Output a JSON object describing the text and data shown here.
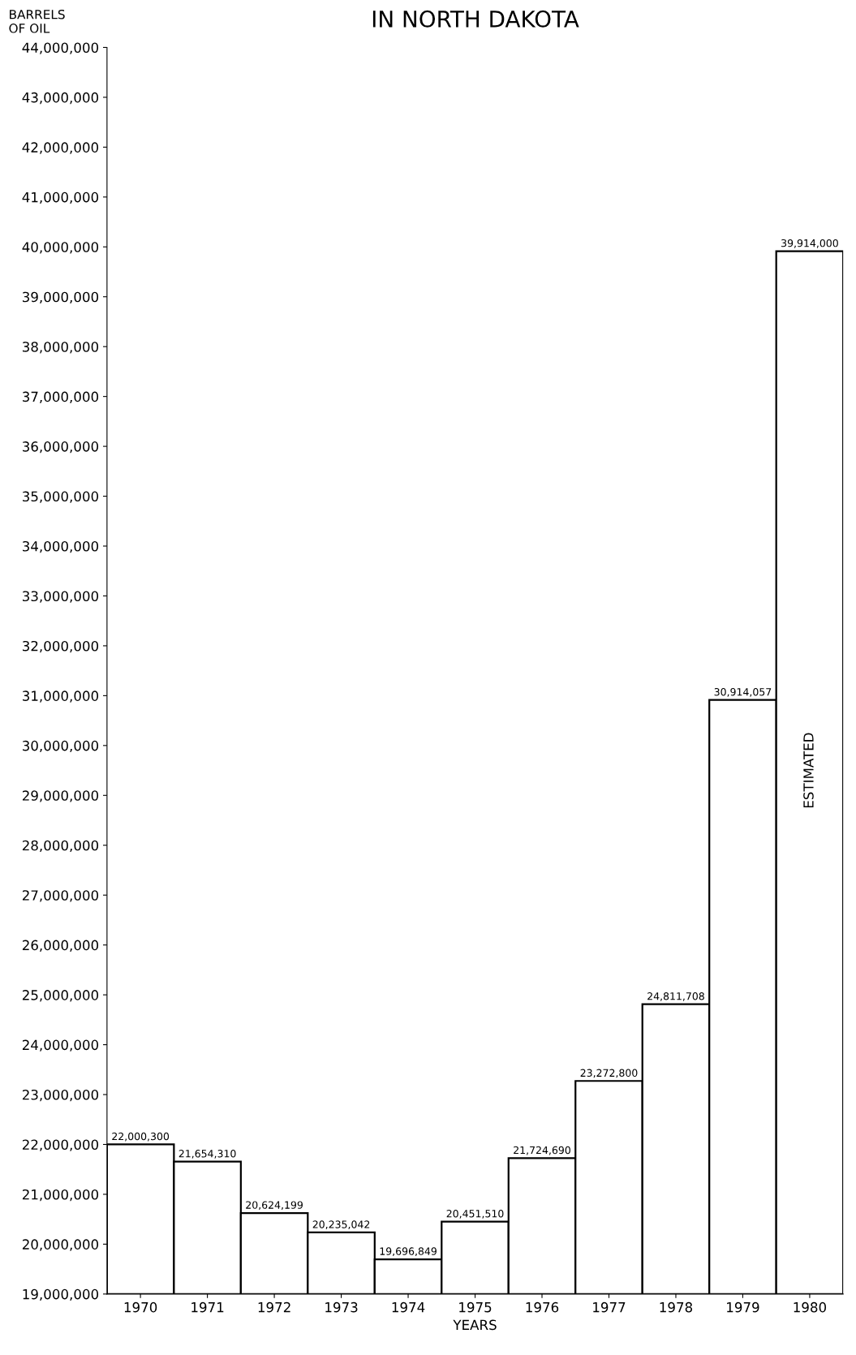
{
  "chart_data": {
    "type": "bar",
    "title": "IN NORTH DAKOTA",
    "ylabel": "BARRELS\nOF OIL",
    "xlabel": "YEARS",
    "categories": [
      "1970",
      "1971",
      "1972",
      "1973",
      "1974",
      "1975",
      "1976",
      "1977",
      "1978",
      "1979",
      "1980"
    ],
    "values": [
      22000300,
      21654310,
      20624199,
      20235042,
      19696849,
      20451510,
      21724690,
      23272800,
      24811708,
      30914057,
      39914000
    ],
    "value_labels": [
      "22,000,300",
      "21,654,310",
      "20,624,199",
      "20,235,042",
      "19,696,849",
      "20,451,510",
      "21,724,690",
      "23,272,800",
      "24,811,708",
      "30,914,057",
      "39,914,000"
    ],
    "color": "#ffffff",
    "ylim": [
      19000000,
      44000000
    ],
    "yticks": [
      {
        "value": 19000000,
        "label": "19,000,000"
      },
      {
        "value": 20000000,
        "label": "20,000,000"
      },
      {
        "value": 21000000,
        "label": "21,000,000"
      },
      {
        "value": 22000000,
        "label": "22,000,000"
      },
      {
        "value": 23000000,
        "label": "23,000,000"
      },
      {
        "value": 24000000,
        "label": "24,000,000"
      },
      {
        "value": 25000000,
        "label": "25,000,000"
      },
      {
        "value": 26000000,
        "label": "26,000,000"
      },
      {
        "value": 27000000,
        "label": "27,000,000"
      },
      {
        "value": 28000000,
        "label": "28,000,000"
      },
      {
        "value": 29000000,
        "label": "29,000,000"
      },
      {
        "value": 30000000,
        "label": "30,000,000"
      },
      {
        "value": 31000000,
        "label": "31,000,000"
      },
      {
        "value": 32000000,
        "label": "32,000,000"
      },
      {
        "value": 33000000,
        "label": "33,000,000"
      },
      {
        "value": 34000000,
        "label": "34,000,000"
      },
      {
        "value": 35000000,
        "label": "35,000,000"
      },
      {
        "value": 36000000,
        "label": "36,000,000"
      },
      {
        "value": 37000000,
        "label": "37,000,000"
      },
      {
        "value": 38000000,
        "label": "38,000,000"
      },
      {
        "value": 39000000,
        "label": "39,000,000"
      },
      {
        "value": 40000000,
        "label": "40,000,000"
      },
      {
        "value": 41000000,
        "label": "41,000,000"
      },
      {
        "value": 42000000,
        "label": "42,000,000"
      },
      {
        "value": 43000000,
        "label": "43,000,000"
      },
      {
        "value": 44000000,
        "label": "44,000,000"
      }
    ],
    "annotations": [
      "ESTIMATED"
    ],
    "grid": false
  }
}
